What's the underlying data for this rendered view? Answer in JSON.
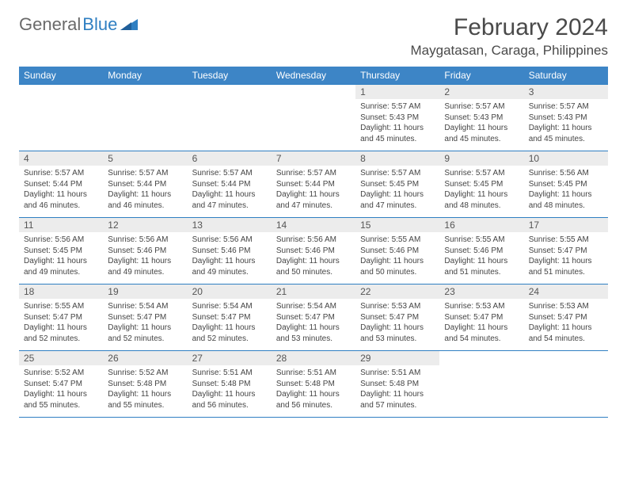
{
  "brand": {
    "text_general": "General",
    "text_blue": "Blue",
    "logo_color": "#2f7fc2"
  },
  "title": "February 2024",
  "location": "Maygatasan, Caraga, Philippines",
  "header_bg": "#3d85c6",
  "header_text_color": "#ffffff",
  "border_color": "#2f7fc2",
  "daynum_bg": "#ececec",
  "day_names": [
    "Sunday",
    "Monday",
    "Tuesday",
    "Wednesday",
    "Thursday",
    "Friday",
    "Saturday"
  ],
  "weeks": [
    [
      {
        "n": "",
        "sunrise": "",
        "sunset": "",
        "daylight": ""
      },
      {
        "n": "",
        "sunrise": "",
        "sunset": "",
        "daylight": ""
      },
      {
        "n": "",
        "sunrise": "",
        "sunset": "",
        "daylight": ""
      },
      {
        "n": "",
        "sunrise": "",
        "sunset": "",
        "daylight": ""
      },
      {
        "n": "1",
        "sunrise": "Sunrise: 5:57 AM",
        "sunset": "Sunset: 5:43 PM",
        "daylight": "Daylight: 11 hours and 45 minutes."
      },
      {
        "n": "2",
        "sunrise": "Sunrise: 5:57 AM",
        "sunset": "Sunset: 5:43 PM",
        "daylight": "Daylight: 11 hours and 45 minutes."
      },
      {
        "n": "3",
        "sunrise": "Sunrise: 5:57 AM",
        "sunset": "Sunset: 5:43 PM",
        "daylight": "Daylight: 11 hours and 45 minutes."
      }
    ],
    [
      {
        "n": "4",
        "sunrise": "Sunrise: 5:57 AM",
        "sunset": "Sunset: 5:44 PM",
        "daylight": "Daylight: 11 hours and 46 minutes."
      },
      {
        "n": "5",
        "sunrise": "Sunrise: 5:57 AM",
        "sunset": "Sunset: 5:44 PM",
        "daylight": "Daylight: 11 hours and 46 minutes."
      },
      {
        "n": "6",
        "sunrise": "Sunrise: 5:57 AM",
        "sunset": "Sunset: 5:44 PM",
        "daylight": "Daylight: 11 hours and 47 minutes."
      },
      {
        "n": "7",
        "sunrise": "Sunrise: 5:57 AM",
        "sunset": "Sunset: 5:44 PM",
        "daylight": "Daylight: 11 hours and 47 minutes."
      },
      {
        "n": "8",
        "sunrise": "Sunrise: 5:57 AM",
        "sunset": "Sunset: 5:45 PM",
        "daylight": "Daylight: 11 hours and 47 minutes."
      },
      {
        "n": "9",
        "sunrise": "Sunrise: 5:57 AM",
        "sunset": "Sunset: 5:45 PM",
        "daylight": "Daylight: 11 hours and 48 minutes."
      },
      {
        "n": "10",
        "sunrise": "Sunrise: 5:56 AM",
        "sunset": "Sunset: 5:45 PM",
        "daylight": "Daylight: 11 hours and 48 minutes."
      }
    ],
    [
      {
        "n": "11",
        "sunrise": "Sunrise: 5:56 AM",
        "sunset": "Sunset: 5:45 PM",
        "daylight": "Daylight: 11 hours and 49 minutes."
      },
      {
        "n": "12",
        "sunrise": "Sunrise: 5:56 AM",
        "sunset": "Sunset: 5:46 PM",
        "daylight": "Daylight: 11 hours and 49 minutes."
      },
      {
        "n": "13",
        "sunrise": "Sunrise: 5:56 AM",
        "sunset": "Sunset: 5:46 PM",
        "daylight": "Daylight: 11 hours and 49 minutes."
      },
      {
        "n": "14",
        "sunrise": "Sunrise: 5:56 AM",
        "sunset": "Sunset: 5:46 PM",
        "daylight": "Daylight: 11 hours and 50 minutes."
      },
      {
        "n": "15",
        "sunrise": "Sunrise: 5:55 AM",
        "sunset": "Sunset: 5:46 PM",
        "daylight": "Daylight: 11 hours and 50 minutes."
      },
      {
        "n": "16",
        "sunrise": "Sunrise: 5:55 AM",
        "sunset": "Sunset: 5:46 PM",
        "daylight": "Daylight: 11 hours and 51 minutes."
      },
      {
        "n": "17",
        "sunrise": "Sunrise: 5:55 AM",
        "sunset": "Sunset: 5:47 PM",
        "daylight": "Daylight: 11 hours and 51 minutes."
      }
    ],
    [
      {
        "n": "18",
        "sunrise": "Sunrise: 5:55 AM",
        "sunset": "Sunset: 5:47 PM",
        "daylight": "Daylight: 11 hours and 52 minutes."
      },
      {
        "n": "19",
        "sunrise": "Sunrise: 5:54 AM",
        "sunset": "Sunset: 5:47 PM",
        "daylight": "Daylight: 11 hours and 52 minutes."
      },
      {
        "n": "20",
        "sunrise": "Sunrise: 5:54 AM",
        "sunset": "Sunset: 5:47 PM",
        "daylight": "Daylight: 11 hours and 52 minutes."
      },
      {
        "n": "21",
        "sunrise": "Sunrise: 5:54 AM",
        "sunset": "Sunset: 5:47 PM",
        "daylight": "Daylight: 11 hours and 53 minutes."
      },
      {
        "n": "22",
        "sunrise": "Sunrise: 5:53 AM",
        "sunset": "Sunset: 5:47 PM",
        "daylight": "Daylight: 11 hours and 53 minutes."
      },
      {
        "n": "23",
        "sunrise": "Sunrise: 5:53 AM",
        "sunset": "Sunset: 5:47 PM",
        "daylight": "Daylight: 11 hours and 54 minutes."
      },
      {
        "n": "24",
        "sunrise": "Sunrise: 5:53 AM",
        "sunset": "Sunset: 5:47 PM",
        "daylight": "Daylight: 11 hours and 54 minutes."
      }
    ],
    [
      {
        "n": "25",
        "sunrise": "Sunrise: 5:52 AM",
        "sunset": "Sunset: 5:47 PM",
        "daylight": "Daylight: 11 hours and 55 minutes."
      },
      {
        "n": "26",
        "sunrise": "Sunrise: 5:52 AM",
        "sunset": "Sunset: 5:48 PM",
        "daylight": "Daylight: 11 hours and 55 minutes."
      },
      {
        "n": "27",
        "sunrise": "Sunrise: 5:51 AM",
        "sunset": "Sunset: 5:48 PM",
        "daylight": "Daylight: 11 hours and 56 minutes."
      },
      {
        "n": "28",
        "sunrise": "Sunrise: 5:51 AM",
        "sunset": "Sunset: 5:48 PM",
        "daylight": "Daylight: 11 hours and 56 minutes."
      },
      {
        "n": "29",
        "sunrise": "Sunrise: 5:51 AM",
        "sunset": "Sunset: 5:48 PM",
        "daylight": "Daylight: 11 hours and 57 minutes."
      },
      {
        "n": "",
        "sunrise": "",
        "sunset": "",
        "daylight": ""
      },
      {
        "n": "",
        "sunrise": "",
        "sunset": "",
        "daylight": ""
      }
    ]
  ]
}
